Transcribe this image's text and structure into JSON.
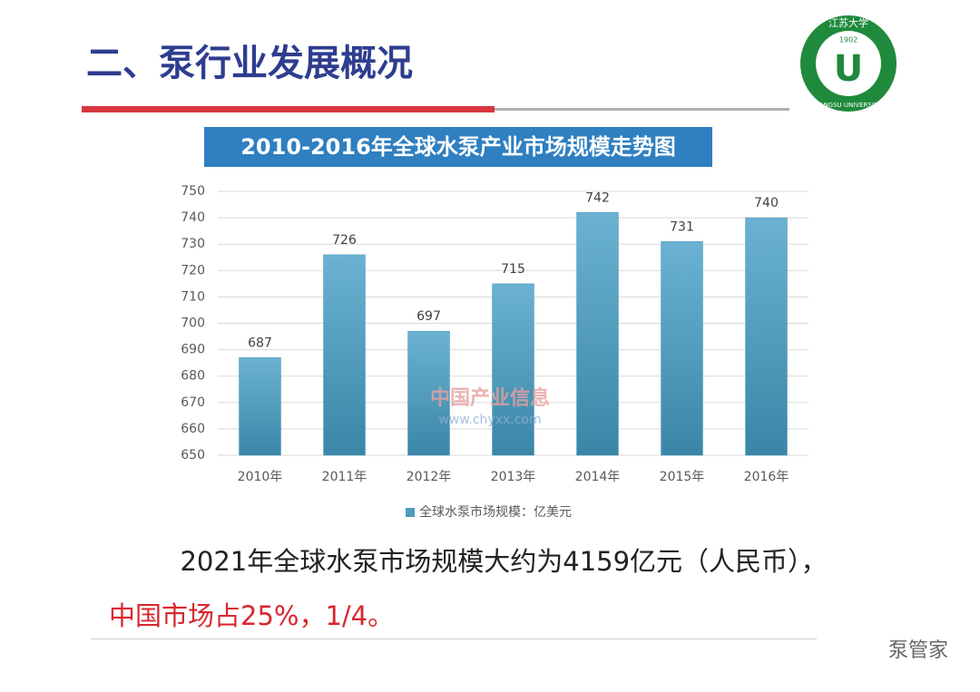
{
  "header": {
    "title": "二、泵行业发展概况",
    "logo": {
      "year": "1902",
      "name": "JIANGSU UNIVERSITY",
      "chinese": "江苏大学"
    }
  },
  "chart_data": {
    "type": "bar",
    "title": "2010-2016年全球水泵产业市场规模走势图",
    "categories": [
      "2010年",
      "2011年",
      "2012年",
      "2013年",
      "2014年",
      "2015年",
      "2016年"
    ],
    "series": [
      {
        "name": "全球水泵市场规模：亿美元",
        "color": "#4f9bbd",
        "values": [
          687,
          726,
          697,
          715,
          742,
          731,
          740
        ]
      }
    ],
    "ylim": [
      650,
      750
    ],
    "yticks": [
      650,
      660,
      670,
      680,
      690,
      700,
      710,
      720,
      730,
      740,
      750
    ],
    "grid": true,
    "data_labels": true,
    "legend": "bottom"
  },
  "watermark": {
    "name": "中国产业信息",
    "url": "www.chyxx.com"
  },
  "text": {
    "line1": "2021年全球水泵市场规模大约为4159亿元（人民币），",
    "line2": "中国市场占25%，1/4。"
  },
  "footer": {
    "brand": "泵管家"
  }
}
